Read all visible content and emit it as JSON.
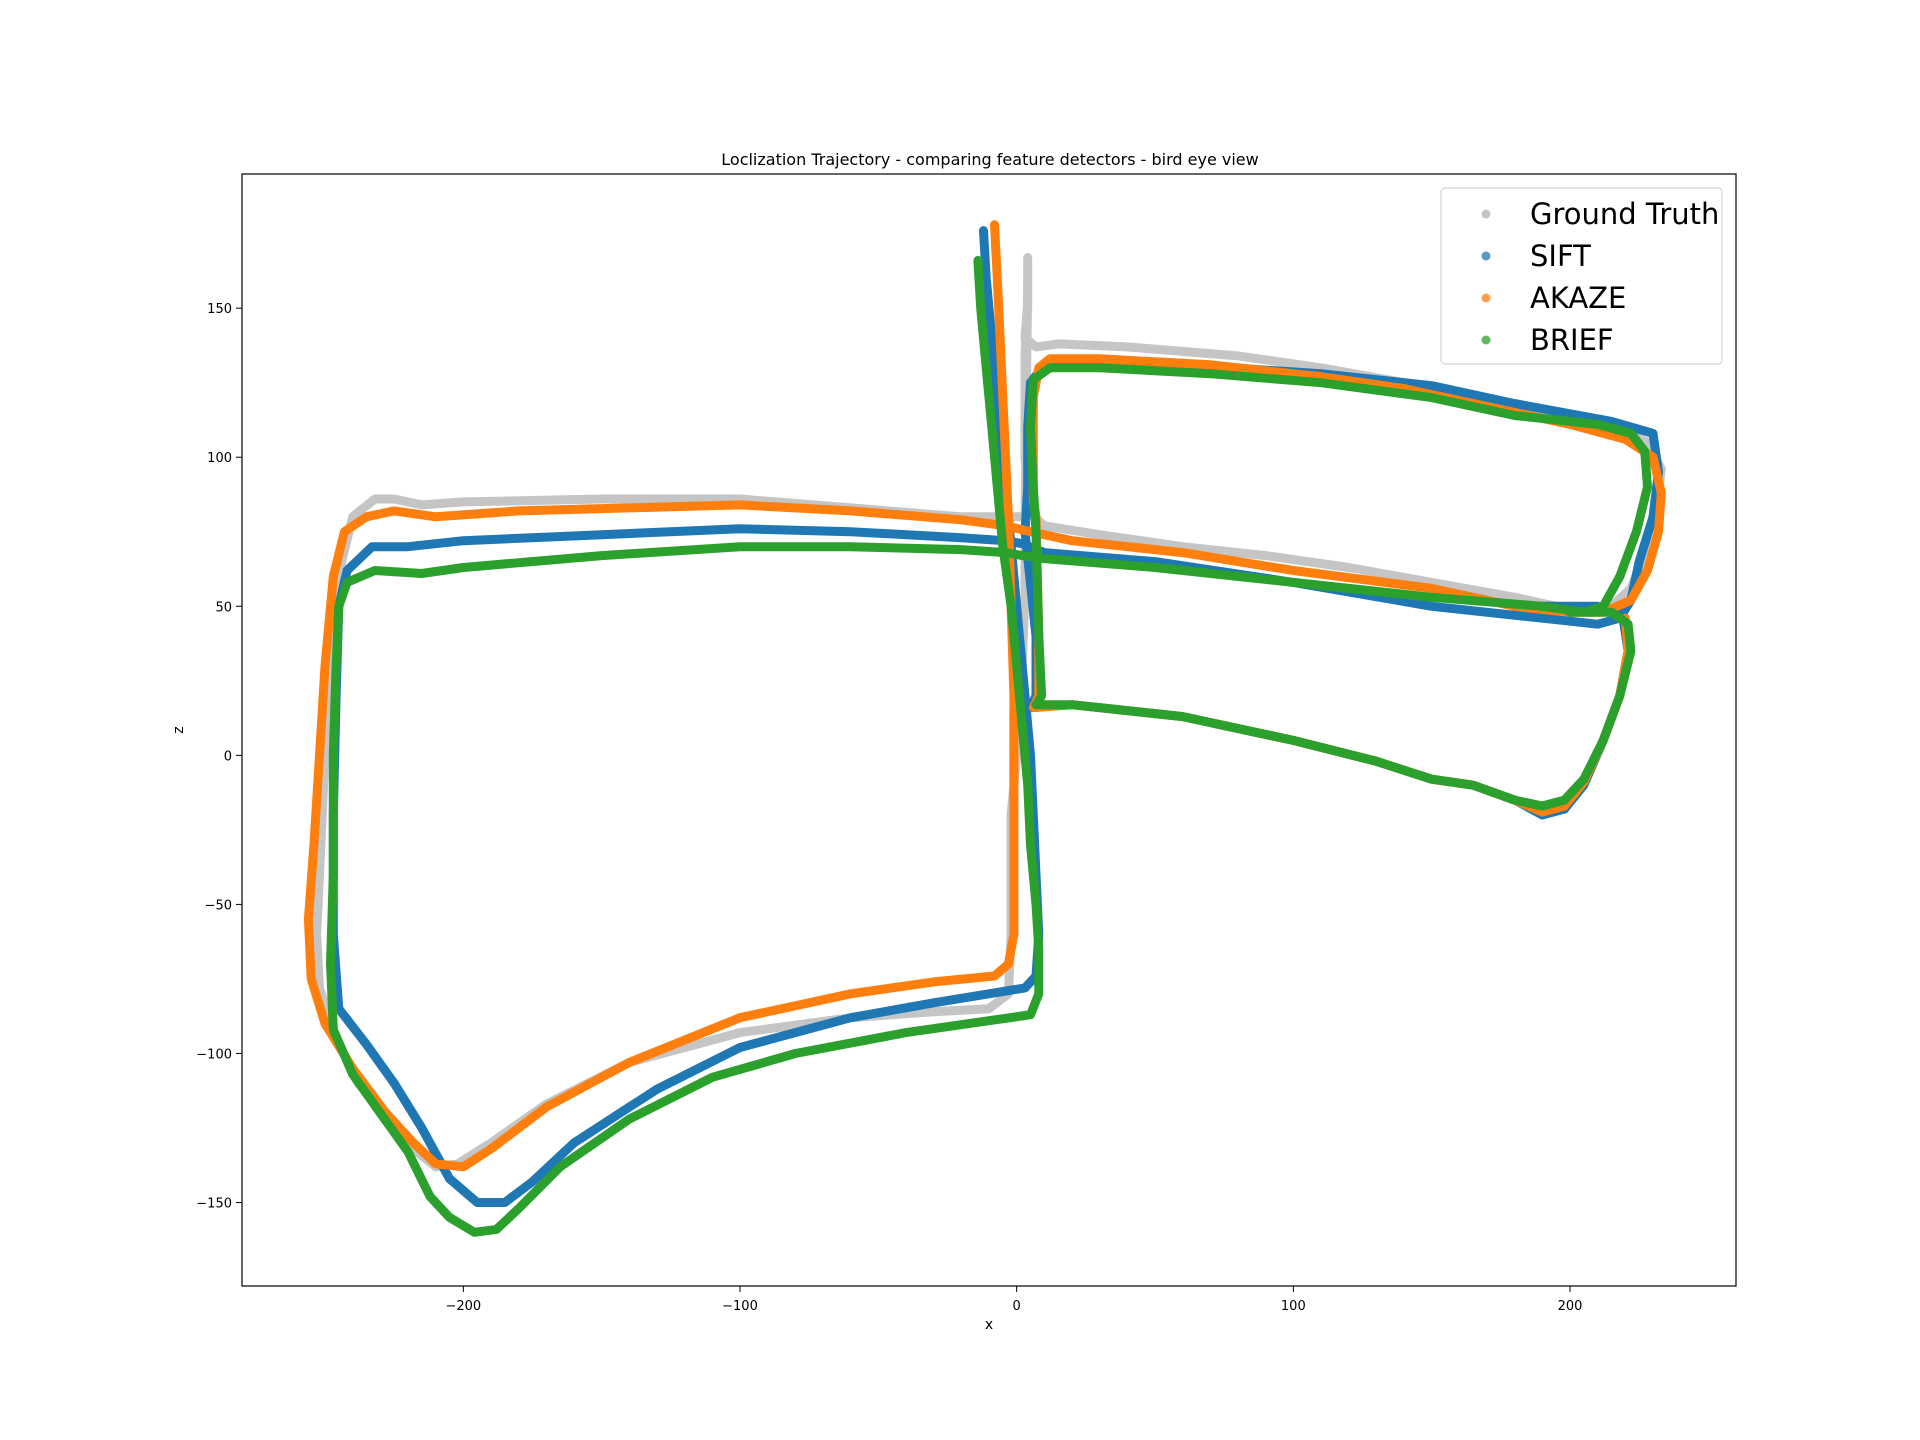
{
  "chart_data": {
    "type": "scatter",
    "title": "Loclization Trajectory - comparing feature detectors - bird eye view",
    "xlabel": "x",
    "ylabel": "z",
    "xlim": [
      -280,
      260
    ],
    "ylim": [
      -178,
      195
    ],
    "xticks": [
      -200,
      -100,
      0,
      100,
      200
    ],
    "yticks": [
      -150,
      -100,
      -50,
      0,
      50,
      100,
      150
    ],
    "xtick_labels": [
      "−200",
      "−100",
      "0",
      "100",
      "200"
    ],
    "ytick_labels": [
      "−150",
      "−100",
      "−50",
      "0",
      "50",
      "100",
      "150"
    ],
    "grid": false,
    "legend_position": "top-right",
    "series": [
      {
        "name": "Ground Truth",
        "color": "#7f7f7f",
        "marker_alpha": 0.45,
        "points": [
          [
            4,
            167
          ],
          [
            4,
            152
          ],
          [
            3,
            140
          ],
          [
            7,
            137
          ],
          [
            15,
            138
          ],
          [
            40,
            137
          ],
          [
            80,
            134
          ],
          [
            110,
            130
          ],
          [
            140,
            125
          ],
          [
            160,
            121
          ],
          [
            180,
            116
          ],
          [
            200,
            112
          ],
          [
            215,
            110
          ],
          [
            228,
            105
          ],
          [
            233,
            96
          ],
          [
            231,
            80
          ],
          [
            226,
            65
          ],
          [
            222,
            56
          ],
          [
            215,
            50
          ],
          [
            200,
            49
          ],
          [
            180,
            53
          ],
          [
            150,
            58
          ],
          [
            120,
            63
          ],
          [
            90,
            67
          ],
          [
            60,
            70
          ],
          [
            30,
            74
          ],
          [
            10,
            77
          ],
          [
            4,
            82
          ],
          [
            3,
            100
          ],
          [
            3,
            118
          ],
          [
            3,
            135
          ],
          [
            4,
            150
          ],
          [
            4,
            160
          ],
          [
            3,
            80
          ],
          [
            -20,
            80
          ],
          [
            -60,
            83
          ],
          [
            -100,
            86
          ],
          [
            -150,
            86
          ],
          [
            -200,
            85
          ],
          [
            -215,
            84
          ],
          [
            -225,
            86
          ],
          [
            -232,
            86
          ],
          [
            -240,
            80
          ],
          [
            -244,
            65
          ],
          [
            -247,
            40
          ],
          [
            -250,
            0
          ],
          [
            -252,
            -40
          ],
          [
            -253,
            -60
          ],
          [
            -252,
            -78
          ],
          [
            -246,
            -95
          ],
          [
            -238,
            -110
          ],
          [
            -228,
            -120
          ],
          [
            -218,
            -132
          ],
          [
            -210,
            -138
          ],
          [
            -202,
            -137
          ],
          [
            -190,
            -130
          ],
          [
            -170,
            -117
          ],
          [
            -140,
            -103
          ],
          [
            -100,
            -93
          ],
          [
            -60,
            -88
          ],
          [
            -30,
            -86
          ],
          [
            -10,
            -85
          ],
          [
            -3,
            -80
          ],
          [
            -2,
            -60
          ],
          [
            -2,
            -20
          ],
          [
            0,
            0
          ],
          [
            2,
            30
          ],
          [
            3,
            55
          ],
          [
            3,
            70
          ]
        ]
      },
      {
        "name": "SIFT",
        "color": "#1f77b4",
        "marker_alpha": 1,
        "points": [
          [
            -12,
            176
          ],
          [
            -11,
            160
          ],
          [
            -9,
            140
          ],
          [
            -7,
            120
          ],
          [
            -5,
            100
          ],
          [
            -3,
            80
          ],
          [
            -1,
            60
          ],
          [
            1,
            40
          ],
          [
            3,
            20
          ],
          [
            5,
            0
          ],
          [
            6,
            -20
          ],
          [
            7,
            -40
          ],
          [
            8,
            -60
          ],
          [
            7,
            -74
          ],
          [
            3,
            -78
          ],
          [
            -10,
            -80
          ],
          [
            -30,
            -83
          ],
          [
            -60,
            -88
          ],
          [
            -100,
            -98
          ],
          [
            -130,
            -112
          ],
          [
            -160,
            -130
          ],
          [
            -175,
            -143
          ],
          [
            -185,
            -150
          ],
          [
            -195,
            -150
          ],
          [
            -205,
            -142
          ],
          [
            -215,
            -125
          ],
          [
            -225,
            -110
          ],
          [
            -235,
            -97
          ],
          [
            -245,
            -85
          ],
          [
            -247,
            -60
          ],
          [
            -247,
            -20
          ],
          [
            -246,
            20
          ],
          [
            -245,
            50
          ],
          [
            -242,
            62
          ],
          [
            -233,
            70
          ],
          [
            -220,
            70
          ],
          [
            -200,
            72
          ],
          [
            -150,
            74
          ],
          [
            -100,
            76
          ],
          [
            -60,
            75
          ],
          [
            -20,
            73
          ],
          [
            -4,
            72
          ],
          [
            2,
            71
          ],
          [
            10,
            68
          ],
          [
            50,
            65
          ],
          [
            100,
            58
          ],
          [
            150,
            50
          ],
          [
            190,
            46
          ],
          [
            210,
            44
          ],
          [
            218,
            46
          ],
          [
            222,
            52
          ],
          [
            225,
            65
          ],
          [
            230,
            80
          ],
          [
            232,
            95
          ],
          [
            230,
            108
          ],
          [
            215,
            112
          ],
          [
            180,
            118
          ],
          [
            150,
            124
          ],
          [
            110,
            128
          ],
          [
            60,
            131
          ],
          [
            20,
            132
          ],
          [
            10,
            131
          ],
          [
            5,
            125
          ],
          [
            4,
            110
          ],
          [
            4,
            90
          ],
          [
            3,
            75
          ],
          [
            7,
            40
          ],
          [
            7,
            20
          ],
          [
            5,
            16
          ],
          [
            20,
            17
          ],
          [
            60,
            13
          ],
          [
            100,
            5
          ],
          [
            130,
            -2
          ],
          [
            150,
            -8
          ],
          [
            165,
            -10
          ],
          [
            180,
            -15
          ],
          [
            190,
            -20
          ],
          [
            198,
            -18
          ],
          [
            205,
            -10
          ],
          [
            212,
            5
          ],
          [
            218,
            20
          ],
          [
            221,
            35
          ],
          [
            219,
            47
          ],
          [
            210,
            50
          ],
          [
            180,
            50
          ]
        ]
      },
      {
        "name": "AKAZE",
        "color": "#ff7f0e",
        "marker_alpha": 1,
        "points": [
          [
            -8,
            178
          ],
          [
            -7,
            160
          ],
          [
            -6,
            140
          ],
          [
            -5,
            120
          ],
          [
            -4,
            100
          ],
          [
            -3,
            80
          ],
          [
            -2,
            50
          ],
          [
            -1,
            20
          ],
          [
            -1,
            -10
          ],
          [
            -1,
            -40
          ],
          [
            -1,
            -60
          ],
          [
            -3,
            -70
          ],
          [
            -8,
            -74
          ],
          [
            -30,
            -76
          ],
          [
            -60,
            -80
          ],
          [
            -100,
            -88
          ],
          [
            -140,
            -103
          ],
          [
            -170,
            -118
          ],
          [
            -190,
            -132
          ],
          [
            -200,
            -138
          ],
          [
            -210,
            -137
          ],
          [
            -218,
            -130
          ],
          [
            -228,
            -120
          ],
          [
            -240,
            -105
          ],
          [
            -250,
            -90
          ],
          [
            -255,
            -75
          ],
          [
            -256,
            -55
          ],
          [
            -254,
            -30
          ],
          [
            -252,
            0
          ],
          [
            -250,
            30
          ],
          [
            -247,
            60
          ],
          [
            -243,
            75
          ],
          [
            -235,
            80
          ],
          [
            -225,
            82
          ],
          [
            -210,
            80
          ],
          [
            -180,
            82
          ],
          [
            -140,
            83
          ],
          [
            -100,
            84
          ],
          [
            -60,
            82
          ],
          [
            -20,
            79
          ],
          [
            -4,
            77
          ],
          [
            5,
            75
          ],
          [
            20,
            72
          ],
          [
            60,
            68
          ],
          [
            100,
            62
          ],
          [
            150,
            56
          ],
          [
            180,
            50
          ],
          [
            200,
            48
          ],
          [
            212,
            48
          ],
          [
            222,
            52
          ],
          [
            228,
            62
          ],
          [
            232,
            75
          ],
          [
            233,
            88
          ],
          [
            230,
            100
          ],
          [
            220,
            106
          ],
          [
            200,
            111
          ],
          [
            170,
            117
          ],
          [
            140,
            123
          ],
          [
            110,
            127
          ],
          [
            70,
            131
          ],
          [
            30,
            133
          ],
          [
            12,
            133
          ],
          [
            8,
            130
          ],
          [
            6,
            120
          ],
          [
            6,
            100
          ],
          [
            6,
            86
          ],
          [
            7,
            80
          ],
          [
            8,
            40
          ],
          [
            8,
            20
          ],
          [
            6,
            16
          ],
          [
            20,
            17
          ],
          [
            60,
            13
          ],
          [
            100,
            5
          ],
          [
            130,
            -2
          ],
          [
            150,
            -8
          ],
          [
            165,
            -10
          ],
          [
            180,
            -15
          ],
          [
            190,
            -19
          ],
          [
            198,
            -17
          ],
          [
            205,
            -9
          ],
          [
            212,
            5
          ],
          [
            218,
            20
          ],
          [
            221,
            35
          ],
          [
            220,
            46
          ]
        ]
      },
      {
        "name": "BRIEF",
        "color": "#2ca02c",
        "marker_alpha": 1,
        "points": [
          [
            -14,
            166
          ],
          [
            -13,
            150
          ],
          [
            -11,
            130
          ],
          [
            -9,
            110
          ],
          [
            -7,
            90
          ],
          [
            -5,
            70
          ],
          [
            -2,
            50
          ],
          [
            0,
            30
          ],
          [
            2,
            10
          ],
          [
            4,
            -10
          ],
          [
            5,
            -30
          ],
          [
            7,
            -50
          ],
          [
            8,
            -65
          ],
          [
            8,
            -80
          ],
          [
            5,
            -87
          ],
          [
            -10,
            -89
          ],
          [
            -40,
            -93
          ],
          [
            -80,
            -100
          ],
          [
            -110,
            -108
          ],
          [
            -140,
            -122
          ],
          [
            -165,
            -138
          ],
          [
            -180,
            -152
          ],
          [
            -188,
            -159
          ],
          [
            -196,
            -160
          ],
          [
            -205,
            -155
          ],
          [
            -212,
            -148
          ],
          [
            -220,
            -133
          ],
          [
            -230,
            -120
          ],
          [
            -240,
            -107
          ],
          [
            -247,
            -92
          ],
          [
            -248,
            -70
          ],
          [
            -247,
            -40
          ],
          [
            -247,
            0
          ],
          [
            -246,
            30
          ],
          [
            -245,
            50
          ],
          [
            -242,
            58
          ],
          [
            -232,
            62
          ],
          [
            -215,
            61
          ],
          [
            -200,
            63
          ],
          [
            -150,
            67
          ],
          [
            -100,
            70
          ],
          [
            -60,
            70
          ],
          [
            -20,
            69
          ],
          [
            -4,
            68
          ],
          [
            2,
            67
          ],
          [
            10,
            66
          ],
          [
            50,
            63
          ],
          [
            100,
            58
          ],
          [
            150,
            53
          ],
          [
            190,
            50
          ],
          [
            205,
            48
          ],
          [
            212,
            50
          ],
          [
            218,
            60
          ],
          [
            224,
            75
          ],
          [
            228,
            90
          ],
          [
            227,
            102
          ],
          [
            222,
            108
          ],
          [
            210,
            111
          ],
          [
            180,
            114
          ],
          [
            150,
            120
          ],
          [
            110,
            125
          ],
          [
            70,
            128
          ],
          [
            30,
            130
          ],
          [
            12,
            130
          ],
          [
            6,
            126
          ],
          [
            5,
            110
          ],
          [
            6,
            90
          ],
          [
            7,
            75
          ],
          [
            8,
            40
          ],
          [
            9,
            20
          ],
          [
            7,
            17
          ],
          [
            20,
            17
          ],
          [
            60,
            13
          ],
          [
            100,
            5
          ],
          [
            130,
            -2
          ],
          [
            150,
            -8
          ],
          [
            165,
            -10
          ],
          [
            180,
            -15
          ],
          [
            190,
            -17
          ],
          [
            198,
            -15
          ],
          [
            205,
            -8
          ],
          [
            212,
            5
          ],
          [
            218,
            20
          ],
          [
            222,
            35
          ],
          [
            221,
            44
          ],
          [
            215,
            48
          ],
          [
            200,
            48
          ]
        ]
      }
    ]
  }
}
